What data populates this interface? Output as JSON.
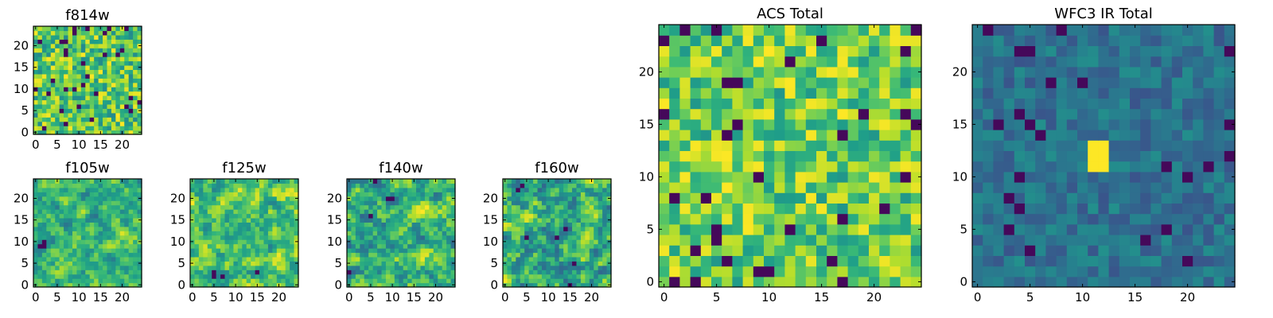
{
  "figure": "Hubble stamp panels",
  "chart_data": [
    {
      "type": "heatmap",
      "title": "f814w",
      "xlim": [
        0,
        24
      ],
      "ylim": [
        0,
        24
      ],
      "grid_size": 25,
      "xticks": [
        "0",
        "5",
        "10",
        "15",
        "20"
      ],
      "yticks": [
        "0",
        "5",
        "10",
        "15",
        "20"
      ],
      "colormap": "viridis",
      "seed": 814,
      "style": "noise",
      "peak": 0,
      "lo": 0.45,
      "hi": 1.0
    },
    {
      "type": "heatmap",
      "title": "f105w",
      "xlim": [
        0,
        24
      ],
      "ylim": [
        0,
        24
      ],
      "grid_size": 25,
      "xticks": [
        "0",
        "5",
        "10",
        "15",
        "20"
      ],
      "yticks": [
        "0",
        "5",
        "10",
        "15",
        "20"
      ],
      "colormap": "viridis",
      "seed": 105,
      "style": "smooth",
      "peak": 0,
      "lo": 0.35,
      "hi": 0.95
    },
    {
      "type": "heatmap",
      "title": "f125w",
      "xlim": [
        0,
        24
      ],
      "ylim": [
        0,
        24
      ],
      "grid_size": 25,
      "xticks": [
        "0",
        "5",
        "10",
        "15",
        "20"
      ],
      "yticks": [
        "0",
        "5",
        "10",
        "15",
        "20"
      ],
      "colormap": "viridis",
      "seed": 125,
      "style": "smooth",
      "peak": 0,
      "lo": 0.4,
      "hi": 1.0
    },
    {
      "type": "heatmap",
      "title": "f140w",
      "xlim": [
        0,
        24
      ],
      "ylim": [
        0,
        24
      ],
      "grid_size": 25,
      "xticks": [
        "0",
        "5",
        "10",
        "15",
        "20"
      ],
      "yticks": [
        "0",
        "5",
        "10",
        "15",
        "20"
      ],
      "colormap": "viridis",
      "seed": 140,
      "style": "smooth",
      "peak": 0,
      "lo": 0.3,
      "hi": 1.0
    },
    {
      "type": "heatmap",
      "title": "f160w",
      "xlim": [
        0,
        24
      ],
      "ylim": [
        0,
        24
      ],
      "grid_size": 25,
      "xticks": [
        "0",
        "5",
        "10",
        "15",
        "20"
      ],
      "yticks": [
        "0",
        "5",
        "10",
        "15",
        "20"
      ],
      "colormap": "viridis",
      "seed": 160,
      "style": "smooth",
      "peak": 0,
      "lo": 0.3,
      "hi": 1.0
    },
    {
      "type": "heatmap",
      "title": "ACS Total",
      "xlim": [
        0,
        24
      ],
      "ylim": [
        0,
        24
      ],
      "grid_size": 25,
      "xticks": [
        "0",
        "5",
        "10",
        "15",
        "20"
      ],
      "yticks": [
        "0",
        "5",
        "10",
        "15",
        "20"
      ],
      "colormap": "viridis",
      "seed": 901,
      "style": "noise",
      "peak": 0,
      "lo": 0.5,
      "hi": 1.0
    },
    {
      "type": "heatmap",
      "title": "WFC3 IR Total",
      "xlim": [
        0,
        24
      ],
      "ylim": [
        0,
        24
      ],
      "grid_size": 25,
      "xticks": [
        "0",
        "5",
        "10",
        "15",
        "20"
      ],
      "yticks": [
        "0",
        "5",
        "10",
        "15",
        "20"
      ],
      "colormap": "viridis",
      "seed": 777,
      "style": "noise",
      "peak": 1,
      "peak_cells": [
        [
          11,
          11
        ],
        [
          11,
          12
        ],
        [
          12,
          11
        ],
        [
          12,
          12
        ],
        [
          11,
          13
        ],
        [
          12,
          13
        ]
      ],
      "lo": 0.25,
      "hi": 0.5
    }
  ]
}
